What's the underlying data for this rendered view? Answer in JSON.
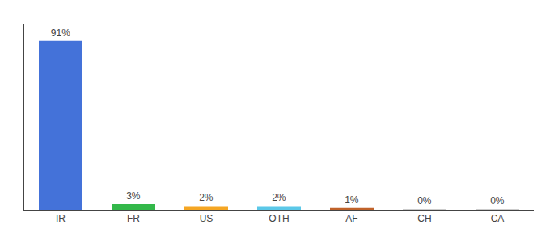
{
  "chart_data": {
    "type": "bar",
    "categories": [
      "IR",
      "FR",
      "US",
      "OTH",
      "AF",
      "CH",
      "CA"
    ],
    "values": [
      91,
      3,
      2,
      2,
      1,
      0.3,
      0.3
    ],
    "value_labels": [
      "91%",
      "3%",
      "2%",
      "2%",
      "1%",
      "0%",
      "0%"
    ],
    "colors": [
      "#4472d9",
      "#33b84a",
      "#f5a623",
      "#5bc8e8",
      "#c0622a",
      "#cccccc",
      "#cccccc"
    ],
    "ylim": [
      0,
      100
    ],
    "grid": false,
    "data_labels": true,
    "tick_labels": "x"
  }
}
